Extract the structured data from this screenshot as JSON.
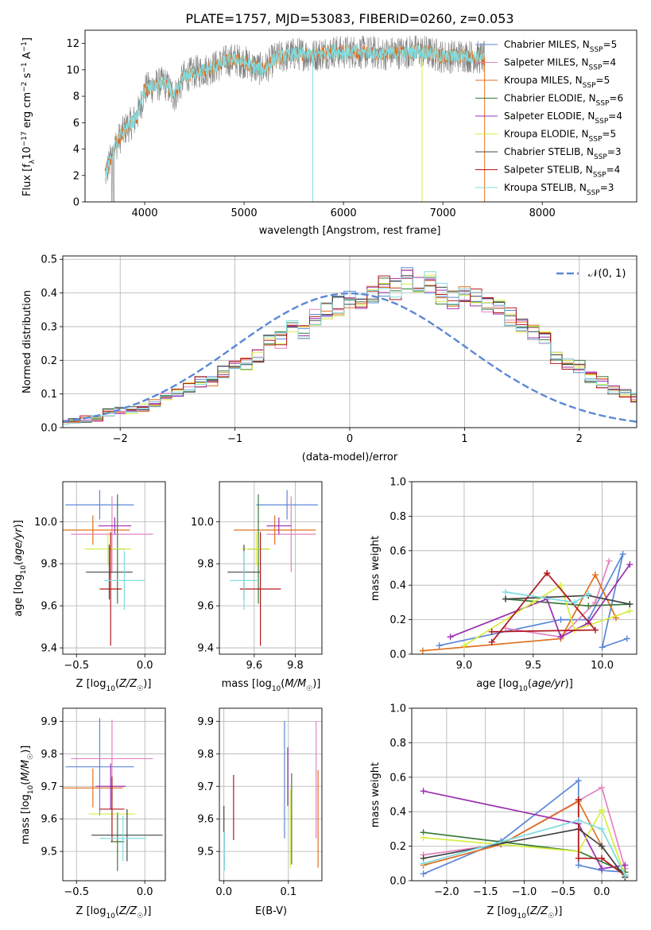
{
  "title": "PLATE=1757, MJD=53083, FIBERID=0260, z=0.053",
  "colors": {
    "CM": "#5b87d6",
    "SM": "#e582c0",
    "KM": "#e07020",
    "CE": "#3a7a3a",
    "SE": "#9b30b0",
    "KE": "#d8ee40",
    "CS": "#444444",
    "SS": "#b0181c",
    "KS": "#80dce0",
    "obs": "#7f7f7f",
    "gauss": "#5b87d6"
  },
  "chart_data": [
    {
      "type": "line",
      "id": "spectrum",
      "xlabel": "wavelength [Angstrom, rest frame]",
      "ylabel": "Flux [f_λ10^-17 erg cm^-2 s^-1 A^-1]",
      "xlim": [
        3400,
        8950
      ],
      "ylim": [
        0,
        13
      ],
      "xticks": [
        4000,
        5000,
        6000,
        7000,
        8000
      ],
      "yticks": [
        0,
        2,
        4,
        6,
        8,
        10,
        12
      ],
      "legend_position": "top-right",
      "series": [
        {
          "key": "CM",
          "name": "Chabrier MILES, N_SSP=5"
        },
        {
          "key": "SM",
          "name": "Salpeter MILES, N_SSP=4"
        },
        {
          "key": "KM",
          "name": "Kroupa MILES, N_SSP=5"
        },
        {
          "key": "CE",
          "name": "Chabrier ELODIE, N_SSP=6"
        },
        {
          "key": "SE",
          "name": "Salpeter ELODIE, N_SSP=4"
        },
        {
          "key": "KE",
          "name": "Kroupa ELODIE, N_SSP=5"
        },
        {
          "key": "CS",
          "name": "Chabrier STELIB, N_SSP=3"
        },
        {
          "key": "SS",
          "name": "Salpeter STELIB, N_SSP=4"
        },
        {
          "key": "KS",
          "name": "Kroupa STELIB, N_SSP=3"
        }
      ],
      "continuum": {
        "x": [
          3600,
          3650,
          3700,
          3800,
          3900,
          3950,
          4000,
          4100,
          4200,
          4300,
          4400,
          4500,
          4600,
          4700,
          4800,
          4900,
          5000,
          5100,
          5200,
          5300,
          5400,
          5500,
          5600,
          5700,
          5800,
          5900,
          6000,
          6100,
          6200,
          6300,
          6400,
          6500,
          6600,
          6700,
          6800,
          6900,
          7000,
          7100,
          7200,
          7300,
          7400
        ],
        "y": [
          2.0,
          3.0,
          4.2,
          5.5,
          6.2,
          7.0,
          8.5,
          8.8,
          9.0,
          8.0,
          9.5,
          9.8,
          10.0,
          10.2,
          10.6,
          10.8,
          10.6,
          10.2,
          10.0,
          10.8,
          11.0,
          11.2,
          11.2,
          11.1,
          11.3,
          11.4,
          11.3,
          11.4,
          11.3,
          11.3,
          11.2,
          11.3,
          11.3,
          11.4,
          11.4,
          11.2,
          11.0,
          11.0,
          11.1,
          11.0,
          10.9
        ]
      },
      "data_end_x": 7420
    },
    {
      "type": "line",
      "id": "residuals",
      "xlabel": "(data-model)/error",
      "ylabel": "Normed distribution",
      "xlim": [
        -2.5,
        2.5
      ],
      "ylim": [
        0,
        0.51
      ],
      "xticks": [
        -2,
        -1,
        0,
        1,
        2
      ],
      "yticks": [
        0.0,
        0.1,
        0.2,
        0.3,
        0.4,
        0.5
      ],
      "legend_position": "top-right",
      "legend_label": "𝒩(0, 1)",
      "bin_width": 0.1,
      "base_hist": [
        0.015,
        0.02,
        0.025,
        0.03,
        0.045,
        0.05,
        0.05,
        0.06,
        0.075,
        0.09,
        0.1,
        0.12,
        0.135,
        0.14,
        0.165,
        0.18,
        0.19,
        0.21,
        0.255,
        0.26,
        0.295,
        0.29,
        0.33,
        0.35,
        0.36,
        0.38,
        0.37,
        0.39,
        0.42,
        0.41,
        0.44,
        0.43,
        0.43,
        0.4,
        0.38,
        0.4,
        0.39,
        0.37,
        0.36,
        0.33,
        0.31,
        0.28,
        0.26,
        0.21,
        0.19,
        0.18,
        0.15,
        0.135,
        0.11,
        0.1,
        0.09,
        0.07,
        0.06,
        0.05,
        0.04,
        0.035,
        0.03,
        0.03,
        0.025,
        0.02,
        0.02
      ]
    },
    {
      "type": "scatter",
      "id": "age_vs_Z",
      "xlabel": "Z [log10(Z/Z☉)]",
      "ylabel": "age [log10(age/yr)]",
      "xlim": [
        -0.6,
        0.15
      ],
      "ylim": [
        9.37,
        10.19
      ],
      "xticks": [
        -0.5,
        0.0
      ],
      "yticks": [
        9.4,
        9.6,
        9.8,
        10.0
      ],
      "points": [
        {
          "key": "CM",
          "x": -0.33,
          "y": 10.08,
          "xerr": 0.25,
          "yerr": 0.07
        },
        {
          "key": "SM",
          "x": -0.24,
          "y": 9.94,
          "xerr": 0.3,
          "yerr": 0.18
        },
        {
          "key": "KM",
          "x": -0.38,
          "y": 9.96,
          "xerr": 0.27,
          "yerr": 0.07
        },
        {
          "key": "CE",
          "x": -0.2,
          "y": 9.87,
          "xerr": 0.06,
          "yerr": 0.26
        },
        {
          "key": "SE",
          "x": -0.22,
          "y": 9.98,
          "xerr": 0.12,
          "yerr": 0.04
        },
        {
          "key": "KE",
          "x": -0.27,
          "y": 9.87,
          "xerr": 0.17,
          "yerr": 0.08
        },
        {
          "key": "CS",
          "x": -0.26,
          "y": 9.76,
          "xerr": 0.17,
          "yerr": 0.13
        },
        {
          "key": "SS",
          "x": -0.25,
          "y": 9.68,
          "xerr": 0.08,
          "yerr": 0.27
        },
        {
          "key": "KS",
          "x": -0.15,
          "y": 9.72,
          "xerr": 0.15,
          "yerr": 0.14
        }
      ]
    },
    {
      "type": "scatter",
      "id": "age_vs_mass",
      "xlabel": "mass [log10(M/M☉)]",
      "ylabel": "",
      "xlim": [
        9.43,
        9.93
      ],
      "ylim": [
        9.37,
        10.19
      ],
      "xticks": [
        9.6,
        9.8
      ],
      "yticks": [
        9.4,
        9.6,
        9.8,
        10.0
      ],
      "points": [
        {
          "key": "CM",
          "x": 9.76,
          "y": 10.08,
          "xerr": 0.15,
          "yerr": 0.07
        },
        {
          "key": "SM",
          "x": 9.78,
          "y": 9.94,
          "xerr": 0.12,
          "yerr": 0.18
        },
        {
          "key": "KM",
          "x": 9.7,
          "y": 9.96,
          "xerr": 0.2,
          "yerr": 0.07
        },
        {
          "key": "CE",
          "x": 9.62,
          "y": 9.87,
          "xerr": 0.05,
          "yerr": 0.26
        },
        {
          "key": "SE",
          "x": 9.72,
          "y": 9.98,
          "xerr": 0.06,
          "yerr": 0.04
        },
        {
          "key": "KE",
          "x": 9.61,
          "y": 9.87,
          "xerr": 0.07,
          "yerr": 0.08
        },
        {
          "key": "CS",
          "x": 9.55,
          "y": 9.76,
          "xerr": 0.08,
          "yerr": 0.13
        },
        {
          "key": "SS",
          "x": 9.63,
          "y": 9.68,
          "xerr": 0.1,
          "yerr": 0.27
        },
        {
          "key": "KS",
          "x": 9.55,
          "y": 9.72,
          "xerr": 0.07,
          "yerr": 0.14
        }
      ]
    },
    {
      "type": "line",
      "id": "mass_weight_vs_age",
      "xlabel": "age [log10(age/yr)]",
      "ylabel": "mass weight",
      "xlim": [
        8.62,
        10.25
      ],
      "ylim": [
        0,
        1
      ],
      "xticks": [
        9.0,
        9.5,
        10.0
      ],
      "yticks": [
        0.0,
        0.2,
        0.4,
        0.6,
        0.8,
        1.0
      ],
      "grid": true,
      "series": [
        {
          "key": "CM",
          "points": [
            [
              8.82,
              0.05
            ],
            [
              9.7,
              0.2
            ],
            [
              9.9,
              0.2
            ],
            [
              10.15,
              0.58
            ],
            [
              10.0,
              0.04
            ],
            [
              10.18,
              0.09
            ]
          ]
        },
        {
          "key": "SM",
          "points": [
            [
              9.3,
              0.15
            ],
            [
              9.7,
              0.1
            ],
            [
              9.95,
              0.3
            ],
            [
              10.05,
              0.54
            ]
          ]
        },
        {
          "key": "KM",
          "points": [
            [
              8.7,
              0.02
            ],
            [
              9.7,
              0.09
            ],
            [
              9.95,
              0.46
            ],
            [
              10.1,
              0.21
            ]
          ]
        },
        {
          "key": "CE",
          "points": [
            [
              9.3,
              0.32
            ],
            [
              9.9,
              0.28
            ],
            [
              10.2,
              0.29
            ]
          ]
        },
        {
          "key": "SE",
          "points": [
            [
              8.9,
              0.1
            ],
            [
              9.6,
              0.32
            ],
            [
              9.7,
              0.1
            ],
            [
              9.9,
              0.18
            ],
            [
              10.2,
              0.52
            ]
          ]
        },
        {
          "key": "KE",
          "points": [
            [
              9.0,
              0.05
            ],
            [
              9.5,
              0.3
            ],
            [
              9.7,
              0.4
            ],
            [
              9.8,
              0.14
            ],
            [
              10.2,
              0.25
            ]
          ]
        },
        {
          "key": "CS",
          "points": [
            [
              9.3,
              0.32
            ],
            [
              9.9,
              0.34
            ],
            [
              10.2,
              0.29
            ]
          ]
        },
        {
          "key": "SS",
          "points": [
            [
              9.2,
              0.07
            ],
            [
              9.6,
              0.47
            ],
            [
              9.95,
              0.14
            ],
            [
              9.2,
              0.13
            ]
          ]
        },
        {
          "key": "KS",
          "points": [
            [
              9.3,
              0.36
            ],
            [
              9.8,
              0.3
            ],
            [
              9.9,
              0.35
            ]
          ]
        }
      ]
    },
    {
      "type": "scatter",
      "id": "mass_vs_Z",
      "xlabel": "Z [log10(Z/Z☉)]",
      "ylabel": "mass [log10(M/M☉)]",
      "xlim": [
        -0.6,
        0.15
      ],
      "ylim": [
        9.41,
        9.94
      ],
      "xticks": [
        -0.5,
        0.0
      ],
      "yticks": [
        9.5,
        9.6,
        9.7,
        9.8,
        9.9
      ],
      "points": [
        {
          "key": "CM",
          "x": -0.33,
          "y": 9.76,
          "xerr": 0.25,
          "yerr": 0.15
        },
        {
          "key": "SM",
          "x": -0.24,
          "y": 9.785,
          "xerr": 0.3,
          "yerr": 0.12
        },
        {
          "key": "KM",
          "x": -0.38,
          "y": 9.695,
          "xerr": 0.22,
          "yerr": 0.06
        },
        {
          "key": "CE",
          "x": -0.2,
          "y": 9.53,
          "xerr": 0.05,
          "yerr": 0.09
        },
        {
          "key": "SE",
          "x": -0.25,
          "y": 9.7,
          "xerr": 0.11,
          "yerr": 0.07
        },
        {
          "key": "KE",
          "x": -0.24,
          "y": 9.615,
          "xerr": 0.17,
          "yerr": 0.07
        },
        {
          "key": "CS",
          "x": -0.13,
          "y": 9.55,
          "xerr": 0.26,
          "yerr": 0.08
        },
        {
          "key": "SS",
          "x": -0.24,
          "y": 9.63,
          "xerr": 0.09,
          "yerr": 0.1
        },
        {
          "key": "KS",
          "x": -0.16,
          "y": 9.54,
          "xerr": 0.17,
          "yerr": 0.07
        }
      ]
    },
    {
      "type": "scatter",
      "id": "mass_vs_ebv",
      "xlabel": "E(B-V)",
      "ylabel": "",
      "xlim": [
        -0.007,
        0.152
      ],
      "ylim": [
        9.41,
        9.94
      ],
      "xticks": [
        0.0,
        0.1
      ],
      "yticks": [
        9.5,
        9.6,
        9.7,
        9.8,
        9.9
      ],
      "points": [
        {
          "key": "CM",
          "x": 0.094,
          "y": 9.72,
          "xerr": 0,
          "yerr": 0.18
        },
        {
          "key": "SM",
          "x": 0.143,
          "y": 9.72,
          "xerr": 0,
          "yerr": 0.18
        },
        {
          "key": "KM",
          "x": 0.146,
          "y": 9.6,
          "xerr": 0,
          "yerr": 0.15
        },
        {
          "key": "CE",
          "x": 0.105,
          "y": 9.6,
          "xerr": 0,
          "yerr": 0.14
        },
        {
          "key": "SE",
          "x": 0.099,
          "y": 9.73,
          "xerr": 0,
          "yerr": 0.09
        },
        {
          "key": "KE",
          "x": 0.103,
          "y": 9.57,
          "xerr": 0,
          "yerr": 0.12
        },
        {
          "key": "CS",
          "x": 0.0,
          "y": 9.6,
          "xerr": 0,
          "yerr": 0.04
        },
        {
          "key": "SS",
          "x": 0.015,
          "y": 9.635,
          "xerr": 0,
          "yerr": 0.1
        },
        {
          "key": "KS",
          "x": 0.001,
          "y": 9.5,
          "xerr": 0,
          "yerr": 0.06
        }
      ]
    },
    {
      "type": "line",
      "id": "mass_weight_vs_Z",
      "xlabel": "Z [log10(Z/Z☉)]",
      "ylabel": "mass weight",
      "xlim": [
        -2.45,
        0.45
      ],
      "ylim": [
        0,
        1
      ],
      "xticks": [
        -2.0,
        -1.5,
        -1.0,
        -0.5,
        0.0
      ],
      "yticks": [
        0.0,
        0.2,
        0.4,
        0.6,
        0.8,
        1.0
      ],
      "grid": true,
      "series": [
        {
          "key": "CM",
          "points": [
            [
              -2.3,
              0.04
            ],
            [
              -1.3,
              0.23
            ],
            [
              -0.3,
              0.58
            ],
            [
              -0.3,
              0.09
            ],
            [
              0.0,
              0.06
            ],
            [
              0.3,
              0.05
            ]
          ]
        },
        {
          "key": "SM",
          "points": [
            [
              -2.3,
              0.15
            ],
            [
              -1.3,
              0.21
            ],
            [
              0.0,
              0.54
            ],
            [
              0.3,
              0.07
            ]
          ]
        },
        {
          "key": "KM",
          "points": [
            [
              -2.3,
              0.09
            ],
            [
              -1.3,
              0.21
            ],
            [
              -0.3,
              0.46
            ],
            [
              0.0,
              0.2
            ],
            [
              0.3,
              0.02
            ]
          ]
        },
        {
          "key": "CE",
          "points": [
            [
              -2.3,
              0.28
            ],
            [
              -0.3,
              0.17
            ],
            [
              0.3,
              0.05
            ]
          ]
        },
        {
          "key": "SE",
          "points": [
            [
              -2.3,
              0.52
            ],
            [
              -0.3,
              0.33
            ],
            [
              0.0,
              0.07
            ],
            [
              0.3,
              0.09
            ]
          ]
        },
        {
          "key": "KE",
          "points": [
            [
              -2.3,
              0.25
            ],
            [
              -0.3,
              0.17
            ],
            [
              0.0,
              0.41
            ],
            [
              0.3,
              0.03
            ]
          ]
        },
        {
          "key": "CS",
          "points": [
            [
              -2.3,
              0.13
            ],
            [
              -0.3,
              0.3
            ],
            [
              0.0,
              0.2
            ],
            [
              0.3,
              0.02
            ]
          ]
        },
        {
          "key": "SS",
          "points": [
            [
              -0.3,
              0.47
            ],
            [
              -0.3,
              0.13
            ],
            [
              0.0,
              0.13
            ],
            [
              0.3,
              0.03
            ]
          ]
        },
        {
          "key": "KS",
          "points": [
            [
              -2.3,
              0.1
            ],
            [
              -0.3,
              0.35
            ],
            [
              0.0,
              0.3
            ],
            [
              0.3,
              0.03
            ]
          ]
        }
      ]
    }
  ]
}
